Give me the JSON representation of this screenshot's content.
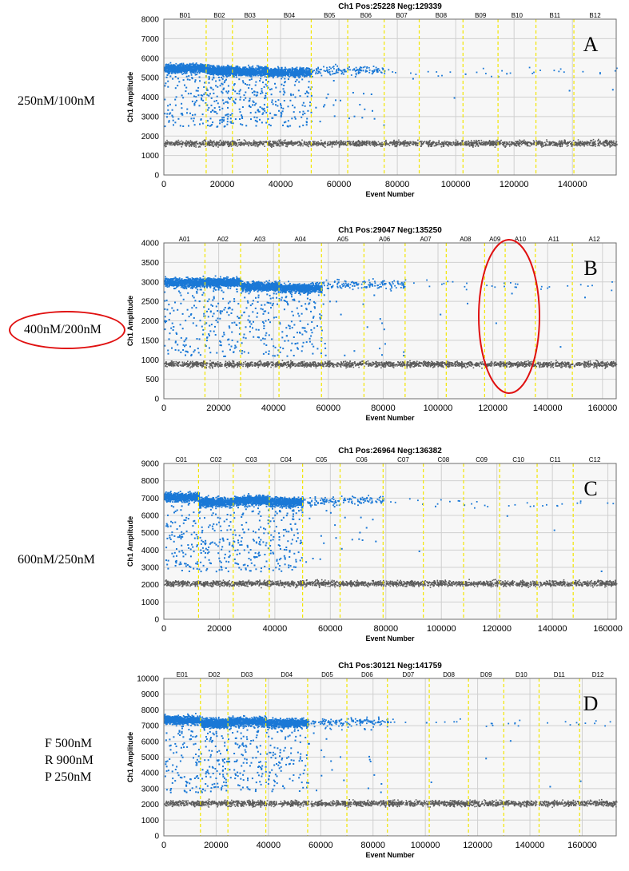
{
  "colors": {
    "positive": "#1a78d6",
    "negative": "#5a5a5a",
    "well_divider": "#f2e600",
    "grid": "#d0d0d0",
    "highlight": "#e01010"
  },
  "labels": {
    "a": [
      "250nM/100nM"
    ],
    "b": [
      "400nM/200nM"
    ],
    "c": [
      "600nM/250nM"
    ],
    "d": [
      "F 500nM",
      "R 900nM",
      "P 250nM"
    ]
  },
  "chart_data": [
    {
      "type": "scatter",
      "panel_letter": "A",
      "title": "Ch1 Pos:25228 Neg:129339",
      "xlabel": "Event Number",
      "ylabel": "Ch1 Amplitude",
      "xlim": [
        0,
        155000
      ],
      "ylim": [
        0,
        8000
      ],
      "xticks": [
        0,
        20000,
        40000,
        60000,
        80000,
        100000,
        120000,
        140000
      ],
      "yticks": [
        0,
        1000,
        2000,
        3000,
        4000,
        5000,
        6000,
        7000,
        8000
      ],
      "wells": [
        "B01",
        "B02",
        "B03",
        "B04",
        "B05",
        "B06",
        "B07",
        "B08",
        "B09",
        "B10",
        "B11",
        "B12"
      ],
      "well_boundaries": [
        14500,
        23500,
        35500,
        50500,
        63000,
        75500,
        87500,
        102500,
        114500,
        127500,
        140500
      ],
      "positive_level_by_well": [
        5500,
        5400,
        5350,
        5300,
        5400,
        5400,
        5300,
        5300,
        5300,
        5300,
        5300,
        5300
      ],
      "positive_cutoff_event": 76000,
      "negative_level": 1650,
      "rain_floor": 2500,
      "grid": true
    },
    {
      "type": "scatter",
      "panel_letter": "B",
      "title": "Ch1 Pos:29047 Neg:135250",
      "xlabel": "Event Number",
      "ylabel": "Ch1 Amplitude",
      "xlim": [
        0,
        165000
      ],
      "ylim": [
        0,
        4000
      ],
      "xticks": [
        0,
        20000,
        40000,
        60000,
        80000,
        100000,
        120000,
        140000,
        160000
      ],
      "yticks": [
        0,
        500,
        1000,
        1500,
        2000,
        2500,
        3000,
        3500,
        4000
      ],
      "wells": [
        "A01",
        "A02",
        "A03",
        "A04",
        "A05",
        "A06",
        "A07",
        "A08",
        "A09",
        "A10",
        "A11",
        "A12"
      ],
      "well_boundaries": [
        15000,
        28000,
        42000,
        57500,
        73000,
        88000,
        103000,
        117000,
        124500,
        135500,
        149000
      ],
      "positive_level_by_well": [
        3000,
        3000,
        2900,
        2850,
        2950,
        2950,
        2950,
        2950,
        2900,
        2900,
        2900,
        2900
      ],
      "positive_cutoff_event": 88000,
      "negative_level": 900,
      "rain_floor": 1100,
      "grid": true,
      "highlight": true
    },
    {
      "type": "scatter",
      "panel_letter": "C",
      "title": "Ch1 Pos:26964 Neg:136382",
      "xlabel": "Event Number",
      "ylabel": "Ch1 Amplitude",
      "xlim": [
        0,
        163000
      ],
      "ylim": [
        0,
        9000
      ],
      "xticks": [
        0,
        20000,
        40000,
        60000,
        80000,
        100000,
        120000,
        140000,
        160000
      ],
      "yticks": [
        0,
        1000,
        2000,
        3000,
        4000,
        5000,
        6000,
        7000,
        8000,
        9000
      ],
      "wells": [
        "C01",
        "C02",
        "C03",
        "C04",
        "C05",
        "C06",
        "C07",
        "C08",
        "C09",
        "C10",
        "C11",
        "C12"
      ],
      "well_boundaries": [
        12500,
        25000,
        38000,
        50000,
        63500,
        79000,
        93500,
        108000,
        121000,
        134500,
        147500
      ],
      "positive_level_by_well": [
        7100,
        6800,
        6900,
        6800,
        6800,
        6900,
        6900,
        6800,
        6700,
        6700,
        6700,
        6700
      ],
      "positive_cutoff_event": 79000,
      "negative_level": 2100,
      "rain_floor": 2800,
      "grid": true
    },
    {
      "type": "scatter",
      "panel_letter": "D",
      "title": "Ch1 Pos:30121 Neg:141759",
      "xlabel": "Event Number",
      "ylabel": "Ch1 Amplitude",
      "xlim": [
        0,
        173000
      ],
      "ylim": [
        0,
        10000
      ],
      "xticks": [
        0,
        20000,
        40000,
        60000,
        80000,
        100000,
        120000,
        140000,
        160000
      ],
      "yticks": [
        0,
        1000,
        2000,
        3000,
        4000,
        5000,
        6000,
        7000,
        8000,
        9000,
        10000
      ],
      "wells": [
        "E01",
        "D02",
        "D03",
        "D04",
        "D05",
        "D06",
        "D07",
        "D08",
        "D09",
        "D10",
        "D11",
        "D12"
      ],
      "well_boundaries": [
        14000,
        24500,
        39000,
        55000,
        70000,
        85500,
        101500,
        116500,
        130000,
        143500,
        159000
      ],
      "positive_level_by_well": [
        7400,
        7200,
        7300,
        7200,
        7200,
        7300,
        7300,
        7300,
        7200,
        7200,
        7200,
        7200
      ],
      "positive_cutoff_event": 86000,
      "negative_level": 2100,
      "rain_floor": 2800,
      "grid": true
    }
  ]
}
